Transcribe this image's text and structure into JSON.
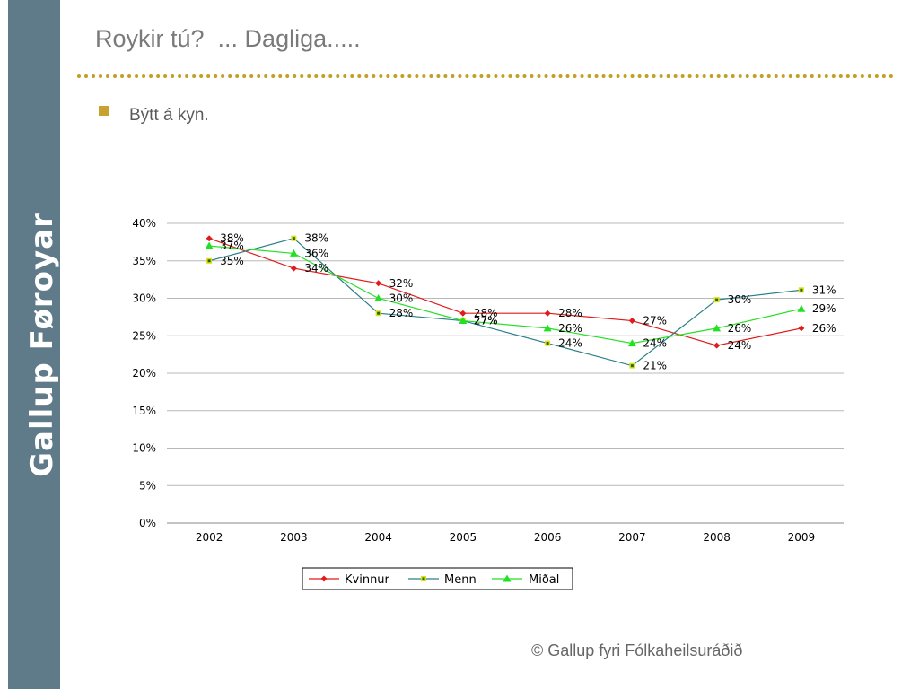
{
  "sidebar": {
    "brand": "Gallup Føroyar",
    "color": "#5f7a88"
  },
  "slide": {
    "title": "Roykir tú?  ... Dagliga.....",
    "bullet": "Býtt á kyn.",
    "footer": "© Gallup fyri Fólkaheilsuráðið"
  },
  "chart_data": {
    "type": "line",
    "title": "",
    "xlabel": "",
    "ylabel": "",
    "categories": [
      "2002",
      "2003",
      "2004",
      "2005",
      "2006",
      "2007",
      "2008",
      "2009"
    ],
    "ylim": [
      0,
      40
    ],
    "yticks": [
      "0%",
      "5%",
      "10%",
      "15%",
      "20%",
      "25%",
      "30%",
      "35%",
      "40%"
    ],
    "grid": true,
    "legend_position": "bottom",
    "series": [
      {
        "name": "Kvinnur",
        "color": "#e01b1b",
        "marker": "diamond",
        "values": [
          38,
          34,
          32,
          28,
          28,
          27,
          23.7,
          26
        ],
        "labels": [
          "38%",
          "34%",
          "32%",
          "28%",
          "28%",
          "27%",
          "24%",
          "26%"
        ]
      },
      {
        "name": "Menn",
        "color": "#2a7f86",
        "marker": "square",
        "values": [
          35,
          38,
          28,
          27,
          24,
          21,
          29.8,
          31.1
        ],
        "labels": [
          "35%",
          "38%",
          "28%",
          "27%",
          "24%",
          "21%",
          "30%",
          "31%"
        ]
      },
      {
        "name": "Miðal",
        "color": "#22e022",
        "marker": "triangle",
        "values": [
          37,
          36,
          30,
          27,
          26,
          24,
          26,
          28.6
        ],
        "labels": [
          "37%",
          "36%",
          "30%",
          "27%",
          "26%",
          "24%",
          "26%",
          "29%"
        ]
      }
    ]
  }
}
